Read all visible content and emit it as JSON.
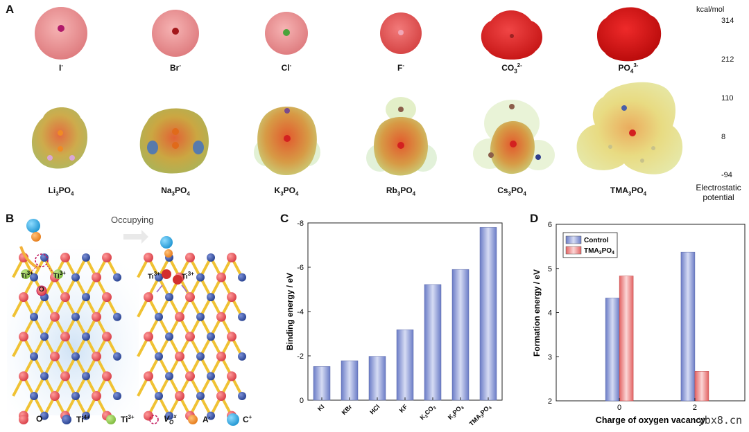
{
  "panels": {
    "a": "A",
    "b": "B",
    "c": "C",
    "d": "D"
  },
  "panel_a": {
    "ions": [
      {
        "base": "I",
        "sup": "-"
      },
      {
        "base": "Br",
        "sup": "-"
      },
      {
        "base": "Cl",
        "sup": "-"
      },
      {
        "base": "F",
        "sup": "-"
      },
      {
        "base": "CO",
        "sub": "3",
        "sup": "2-"
      },
      {
        "base": "PO",
        "sub": "4",
        "sup": "3-"
      }
    ],
    "salts": [
      {
        "a": "Li",
        "s1": "3",
        "b": "PO",
        "s2": "4"
      },
      {
        "a": "Na",
        "s1": "3",
        "b": "PO",
        "s2": "4"
      },
      {
        "a": "K",
        "s1": "3",
        "b": "PO",
        "s2": "4"
      },
      {
        "a": "Rb",
        "s1": "3",
        "b": "PO",
        "s2": "4"
      },
      {
        "a": "Cs",
        "s1": "3",
        "b": "PO",
        "s2": "4"
      },
      {
        "a": "TMA",
        "s1": "3",
        "b": "PO",
        "s2": "4"
      }
    ],
    "colorbar": {
      "unit": "kcal/mol",
      "ticks": [
        "314",
        "212",
        "110",
        "8",
        "-94"
      ],
      "title1": "Electrostatic",
      "title2": "potential"
    }
  },
  "panel_b": {
    "occupying": "Occupying",
    "ti3_left": "Ti",
    "ti3_sup": "3+",
    "o_label": "O",
    "legend": [
      {
        "label": "O",
        "color": "#e8565e"
      },
      {
        "label": "Ti",
        "sup": "4+",
        "color": "#3b55a8"
      },
      {
        "label": "Ti",
        "sup": "3+",
        "color": "#8fc84a"
      },
      {
        "label": "V",
        "sup": "x",
        "sub": "O",
        "color": "#c2185b"
      },
      {
        "label": "A",
        "sup": "-",
        "color": "#f08a24"
      },
      {
        "label": "C",
        "sup": "+",
        "color": "#2aa8e0"
      }
    ]
  },
  "chart_data": [
    {
      "type": "bar",
      "panel": "C",
      "categories": [
        "KI",
        "KBr",
        "HCl",
        "KF",
        "K2CO3",
        "K3PO4",
        "TMA3PO4"
      ],
      "values": [
        -1.52,
        -1.78,
        -1.98,
        -3.18,
        -5.22,
        -5.9,
        -7.8
      ],
      "ylabel": "Binding energy / eV",
      "ylim": [
        0,
        -8
      ],
      "yticks": [
        "0",
        "-2",
        "-4",
        "-6",
        "-8"
      ],
      "color": "#8c9bd6"
    },
    {
      "type": "bar",
      "panel": "D",
      "categories": [
        "0",
        "2"
      ],
      "series": [
        {
          "name": "Control",
          "values": [
            4.33,
            5.37
          ],
          "color": "#8c9bd6"
        },
        {
          "name": "TMA3PO4",
          "values": [
            4.83,
            2.67
          ],
          "color": "#ef8b8b"
        }
      ],
      "legend_labels": [
        {
          "base": "Control"
        },
        {
          "base": "TMA",
          "sub": "3",
          "mid": "PO",
          "sub2": "4"
        }
      ],
      "xlabel": "Charge of oxygen vacancy",
      "ylabel": "Formation energy / eV",
      "ylim": [
        2,
        6
      ],
      "yticks": [
        "2",
        "3",
        "4",
        "5",
        "6"
      ]
    }
  ],
  "watermark": "ybx8.cn"
}
